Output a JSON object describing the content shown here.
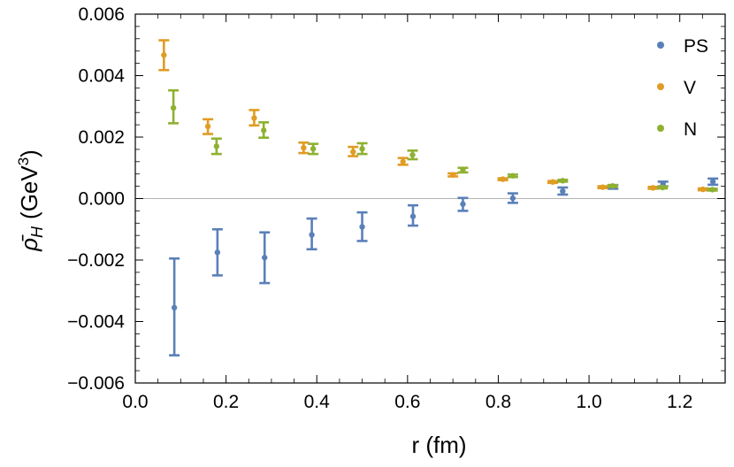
{
  "chart_data": {
    "type": "scatter",
    "xlabel": "r (fm)",
    "ylabel": "ρ̄",
    "ylabel_sub": "H",
    "ylabel_unit": "(GeV",
    "ylabel_exp": "3",
    "ylabel_close": ")",
    "xlim": [
      0.0,
      1.3
    ],
    "ylim": [
      -0.006,
      0.006
    ],
    "x_ticks": [
      {
        "v": 0.0,
        "label": "0.0"
      },
      {
        "v": 0.2,
        "label": "0.2"
      },
      {
        "v": 0.4,
        "label": "0.4"
      },
      {
        "v": 0.6,
        "label": "0.6"
      },
      {
        "v": 0.8,
        "label": "0.8"
      },
      {
        "v": 1.0,
        "label": "1.0"
      },
      {
        "v": 1.2,
        "label": "1.2"
      }
    ],
    "y_ticks": [
      {
        "v": 0.006,
        "label": "0.006"
      },
      {
        "v": 0.004,
        "label": "0.004"
      },
      {
        "v": 0.002,
        "label": "0.002"
      },
      {
        "v": 0.0,
        "label": "0.000"
      },
      {
        "v": -0.002,
        "label": "−0.002"
      },
      {
        "v": -0.004,
        "label": "−0.004"
      },
      {
        "v": -0.006,
        "label": "−0.006"
      }
    ],
    "grid": false,
    "zero_line": true,
    "legend_position": "top-right",
    "series": [
      {
        "name": "PS",
        "color": "#5a80b8",
        "points": [
          {
            "x": 0.086,
            "y": -0.00355,
            "lo": -0.0051,
            "hi": -0.00195
          },
          {
            "x": 0.181,
            "y": -0.00175,
            "lo": -0.0025,
            "hi": -0.001
          },
          {
            "x": 0.285,
            "y": -0.00192,
            "lo": -0.00275,
            "hi": -0.0011
          },
          {
            "x": 0.389,
            "y": -0.00118,
            "lo": -0.00165,
            "hi": -0.00065
          },
          {
            "x": 0.5,
            "y": -0.00092,
            "lo": -0.00138,
            "hi": -0.00045
          },
          {
            "x": 0.612,
            "y": -0.00058,
            "lo": -0.00088,
            "hi": -0.00022
          },
          {
            "x": 0.722,
            "y": -0.00018,
            "lo": -0.0004,
            "hi": 2e-05
          },
          {
            "x": 0.832,
            "y": 1e-05,
            "lo": -0.00014,
            "hi": 0.00017
          },
          {
            "x": 0.942,
            "y": 0.00024,
            "lo": 0.00013,
            "hi": 0.00036
          },
          {
            "x": 1.053,
            "y": 0.00038,
            "lo": 0.00032,
            "hi": 0.00044
          },
          {
            "x": 1.163,
            "y": 0.00048,
            "lo": 0.0004,
            "hi": 0.00055
          },
          {
            "x": 1.273,
            "y": 0.00055,
            "lo": 0.00045,
            "hi": 0.00065
          }
        ]
      },
      {
        "name": "V",
        "color": "#e09c24",
        "points": [
          {
            "x": 0.063,
            "y": 0.00467,
            "lo": 0.00418,
            "hi": 0.00515
          },
          {
            "x": 0.16,
            "y": 0.00235,
            "lo": 0.0021,
            "hi": 0.00258
          },
          {
            "x": 0.262,
            "y": 0.00262,
            "lo": 0.00238,
            "hi": 0.00288
          },
          {
            "x": 0.371,
            "y": 0.00165,
            "lo": 0.00148,
            "hi": 0.00182
          },
          {
            "x": 0.48,
            "y": 0.00152,
            "lo": 0.00138,
            "hi": 0.00168
          },
          {
            "x": 0.59,
            "y": 0.0012,
            "lo": 0.0011,
            "hi": 0.00132
          },
          {
            "x": 0.7,
            "y": 0.00077,
            "lo": 0.00072,
            "hi": 0.00082
          },
          {
            "x": 0.81,
            "y": 0.00063,
            "lo": 0.0006,
            "hi": 0.00066
          },
          {
            "x": 0.92,
            "y": 0.00054,
            "lo": 0.00051,
            "hi": 0.00057
          },
          {
            "x": 1.03,
            "y": 0.00037,
            "lo": 0.00034,
            "hi": 0.0004
          },
          {
            "x": 1.141,
            "y": 0.00035,
            "lo": 0.00032,
            "hi": 0.00038
          },
          {
            "x": 1.251,
            "y": 0.0003,
            "lo": 0.00027,
            "hi": 0.00033
          }
        ]
      },
      {
        "name": "N",
        "color": "#8fb132",
        "points": [
          {
            "x": 0.084,
            "y": 0.00295,
            "lo": 0.00245,
            "hi": 0.00352
          },
          {
            "x": 0.179,
            "y": 0.0017,
            "lo": 0.00145,
            "hi": 0.00195
          },
          {
            "x": 0.283,
            "y": 0.00222,
            "lo": 0.00198,
            "hi": 0.00248
          },
          {
            "x": 0.392,
            "y": 0.00162,
            "lo": 0.00145,
            "hi": 0.00178
          },
          {
            "x": 0.5,
            "y": 0.00162,
            "lo": 0.00145,
            "hi": 0.0018
          },
          {
            "x": 0.611,
            "y": 0.00142,
            "lo": 0.00128,
            "hi": 0.00156
          },
          {
            "x": 0.722,
            "y": 0.00093,
            "lo": 0.00085,
            "hi": 0.001
          },
          {
            "x": 0.832,
            "y": 0.00074,
            "lo": 0.0007,
            "hi": 0.00078
          },
          {
            "x": 0.942,
            "y": 0.00058,
            "lo": 0.00055,
            "hi": 0.00061
          },
          {
            "x": 1.052,
            "y": 0.00041,
            "lo": 0.00038,
            "hi": 0.00044
          },
          {
            "x": 1.162,
            "y": 0.00036,
            "lo": 0.00033,
            "hi": 0.00039
          },
          {
            "x": 1.272,
            "y": 0.00029,
            "lo": 0.00026,
            "hi": 0.00032
          }
        ]
      }
    ]
  }
}
